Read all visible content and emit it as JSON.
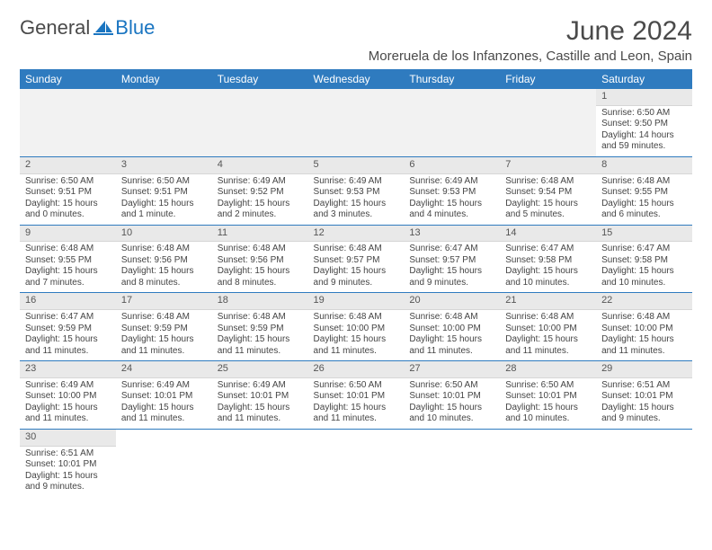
{
  "brand": {
    "part1": "General",
    "part2": "Blue"
  },
  "title": "June 2024",
  "location": "Moreruela de los Infanzones, Castille and Leon, Spain",
  "columns": [
    "Sunday",
    "Monday",
    "Tuesday",
    "Wednesday",
    "Thursday",
    "Friday",
    "Saturday"
  ],
  "colors": {
    "header_bg": "#2f7bbf",
    "header_fg": "#ffffff",
    "daynum_bg": "#e9e9e9",
    "border": "#2f7bbf",
    "brand_blue": "#1a75c1"
  },
  "weeks": [
    [
      null,
      null,
      null,
      null,
      null,
      null,
      {
        "n": "1",
        "sunrise": "Sunrise: 6:50 AM",
        "sunset": "Sunset: 9:50 PM",
        "daylight": "Daylight: 14 hours and 59 minutes."
      }
    ],
    [
      {
        "n": "2",
        "sunrise": "Sunrise: 6:50 AM",
        "sunset": "Sunset: 9:51 PM",
        "daylight": "Daylight: 15 hours and 0 minutes."
      },
      {
        "n": "3",
        "sunrise": "Sunrise: 6:50 AM",
        "sunset": "Sunset: 9:51 PM",
        "daylight": "Daylight: 15 hours and 1 minute."
      },
      {
        "n": "4",
        "sunrise": "Sunrise: 6:49 AM",
        "sunset": "Sunset: 9:52 PM",
        "daylight": "Daylight: 15 hours and 2 minutes."
      },
      {
        "n": "5",
        "sunrise": "Sunrise: 6:49 AM",
        "sunset": "Sunset: 9:53 PM",
        "daylight": "Daylight: 15 hours and 3 minutes."
      },
      {
        "n": "6",
        "sunrise": "Sunrise: 6:49 AM",
        "sunset": "Sunset: 9:53 PM",
        "daylight": "Daylight: 15 hours and 4 minutes."
      },
      {
        "n": "7",
        "sunrise": "Sunrise: 6:48 AM",
        "sunset": "Sunset: 9:54 PM",
        "daylight": "Daylight: 15 hours and 5 minutes."
      },
      {
        "n": "8",
        "sunrise": "Sunrise: 6:48 AM",
        "sunset": "Sunset: 9:55 PM",
        "daylight": "Daylight: 15 hours and 6 minutes."
      }
    ],
    [
      {
        "n": "9",
        "sunrise": "Sunrise: 6:48 AM",
        "sunset": "Sunset: 9:55 PM",
        "daylight": "Daylight: 15 hours and 7 minutes."
      },
      {
        "n": "10",
        "sunrise": "Sunrise: 6:48 AM",
        "sunset": "Sunset: 9:56 PM",
        "daylight": "Daylight: 15 hours and 8 minutes."
      },
      {
        "n": "11",
        "sunrise": "Sunrise: 6:48 AM",
        "sunset": "Sunset: 9:56 PM",
        "daylight": "Daylight: 15 hours and 8 minutes."
      },
      {
        "n": "12",
        "sunrise": "Sunrise: 6:48 AM",
        "sunset": "Sunset: 9:57 PM",
        "daylight": "Daylight: 15 hours and 9 minutes."
      },
      {
        "n": "13",
        "sunrise": "Sunrise: 6:47 AM",
        "sunset": "Sunset: 9:57 PM",
        "daylight": "Daylight: 15 hours and 9 minutes."
      },
      {
        "n": "14",
        "sunrise": "Sunrise: 6:47 AM",
        "sunset": "Sunset: 9:58 PM",
        "daylight": "Daylight: 15 hours and 10 minutes."
      },
      {
        "n": "15",
        "sunrise": "Sunrise: 6:47 AM",
        "sunset": "Sunset: 9:58 PM",
        "daylight": "Daylight: 15 hours and 10 minutes."
      }
    ],
    [
      {
        "n": "16",
        "sunrise": "Sunrise: 6:47 AM",
        "sunset": "Sunset: 9:59 PM",
        "daylight": "Daylight: 15 hours and 11 minutes."
      },
      {
        "n": "17",
        "sunrise": "Sunrise: 6:48 AM",
        "sunset": "Sunset: 9:59 PM",
        "daylight": "Daylight: 15 hours and 11 minutes."
      },
      {
        "n": "18",
        "sunrise": "Sunrise: 6:48 AM",
        "sunset": "Sunset: 9:59 PM",
        "daylight": "Daylight: 15 hours and 11 minutes."
      },
      {
        "n": "19",
        "sunrise": "Sunrise: 6:48 AM",
        "sunset": "Sunset: 10:00 PM",
        "daylight": "Daylight: 15 hours and 11 minutes."
      },
      {
        "n": "20",
        "sunrise": "Sunrise: 6:48 AM",
        "sunset": "Sunset: 10:00 PM",
        "daylight": "Daylight: 15 hours and 11 minutes."
      },
      {
        "n": "21",
        "sunrise": "Sunrise: 6:48 AM",
        "sunset": "Sunset: 10:00 PM",
        "daylight": "Daylight: 15 hours and 11 minutes."
      },
      {
        "n": "22",
        "sunrise": "Sunrise: 6:48 AM",
        "sunset": "Sunset: 10:00 PM",
        "daylight": "Daylight: 15 hours and 11 minutes."
      }
    ],
    [
      {
        "n": "23",
        "sunrise": "Sunrise: 6:49 AM",
        "sunset": "Sunset: 10:00 PM",
        "daylight": "Daylight: 15 hours and 11 minutes."
      },
      {
        "n": "24",
        "sunrise": "Sunrise: 6:49 AM",
        "sunset": "Sunset: 10:01 PM",
        "daylight": "Daylight: 15 hours and 11 minutes."
      },
      {
        "n": "25",
        "sunrise": "Sunrise: 6:49 AM",
        "sunset": "Sunset: 10:01 PM",
        "daylight": "Daylight: 15 hours and 11 minutes."
      },
      {
        "n": "26",
        "sunrise": "Sunrise: 6:50 AM",
        "sunset": "Sunset: 10:01 PM",
        "daylight": "Daylight: 15 hours and 11 minutes."
      },
      {
        "n": "27",
        "sunrise": "Sunrise: 6:50 AM",
        "sunset": "Sunset: 10:01 PM",
        "daylight": "Daylight: 15 hours and 10 minutes."
      },
      {
        "n": "28",
        "sunrise": "Sunrise: 6:50 AM",
        "sunset": "Sunset: 10:01 PM",
        "daylight": "Daylight: 15 hours and 10 minutes."
      },
      {
        "n": "29",
        "sunrise": "Sunrise: 6:51 AM",
        "sunset": "Sunset: 10:01 PM",
        "daylight": "Daylight: 15 hours and 9 minutes."
      }
    ],
    [
      {
        "n": "30",
        "sunrise": "Sunrise: 6:51 AM",
        "sunset": "Sunset: 10:01 PM",
        "daylight": "Daylight: 15 hours and 9 minutes."
      },
      null,
      null,
      null,
      null,
      null,
      null
    ]
  ]
}
